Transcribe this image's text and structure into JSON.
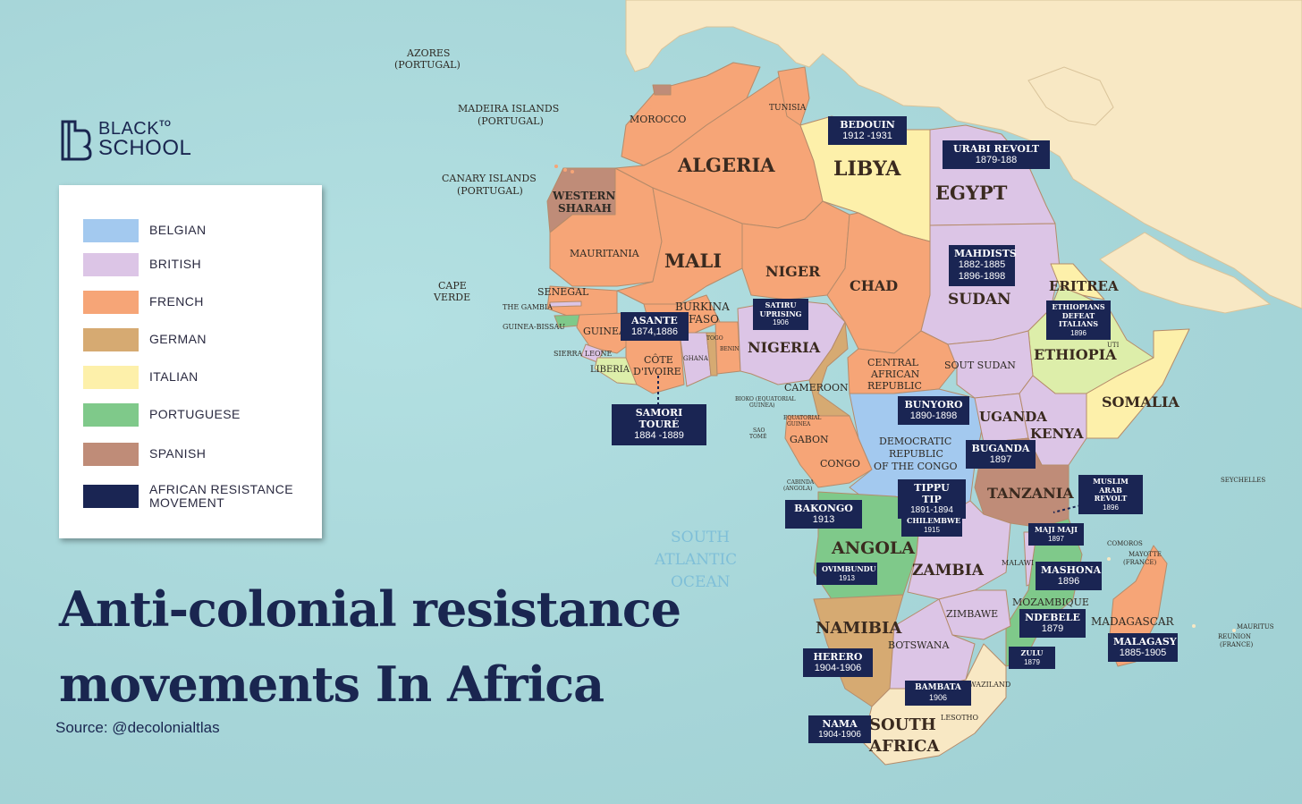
{
  "title_lines": [
    "Anti-colonial resistance",
    "movements In Africa"
  ],
  "source": "Source: @decolonialtlas",
  "logo": {
    "line1": "BLACK",
    "sup": "TO",
    "line2": "SCHOOL"
  },
  "legend": [
    {
      "label": "BELGIAN",
      "color": "#a3c9ef"
    },
    {
      "label": "BRITISH",
      "color": "#dcc5e6"
    },
    {
      "label": "FRENCH",
      "color": "#f6a577"
    },
    {
      "label": "GERMAN",
      "color": "#d6aa72"
    },
    {
      "label": "ITALIAN",
      "color": "#fdf0aa"
    },
    {
      "label": "PORTUGUESE",
      "color": "#7fc98a"
    },
    {
      "label": "SPANISH",
      "color": "#bf8c78"
    },
    {
      "label": "AFRICAN RESISTANCE MOVEMENT",
      "color": "#1a2553"
    }
  ],
  "countries": {
    "algeria": "ALGERIA",
    "libya": "LIBYA",
    "egypt": "EGYPT",
    "mali": "MALI",
    "niger": "NIGER",
    "chad": "CHAD",
    "sudan": "SUDAN",
    "eritrea": "ERITREA",
    "ethiopia": "ETHIOPIA",
    "somalia": "SOMALIA",
    "nigeria": "NIGERIA",
    "tanzania": "TANZANIA",
    "uganda": "UGANDA",
    "kenya": "KENYA",
    "angola": "ANGOLA",
    "zambia": "ZAMBIA",
    "namibia": "NAMIBIA",
    "south_africa": "SOUTH AFRICA",
    "morocco": "MOROCCO",
    "tunisia": "TUNISIA",
    "mauritania": "MAURITANIA",
    "western_sahara": "WESTERN SHARAH",
    "senegal": "SENEGAL",
    "gambia": "THE GAMBIA",
    "guinea_bissau": "GUINEA-BISSAU",
    "guinea": "GUINEA",
    "sierra_leone": "SIERRA LEONE",
    "liberia": "LIBERIA",
    "cote": "CÔTE D'IVOIRE",
    "ghana": "GHANA",
    "togo": "TOGO",
    "benin": "BENIN",
    "burkina": "BURKINA FASO",
    "cameroon": "CAMEROON",
    "car": "CENTRAL AFRICAN REPUBLIC",
    "south_sudan": "SOUT SUDAN",
    "gabon": "GABON",
    "congo": "CONGO",
    "drc": "DEMOCRATIC REPUBLIC OF THE CONGO",
    "bioko": "BIOKO (EQUATORIAL GUINEA)",
    "eq_guinea": "EQUATORIAL GUINEA",
    "sao_tome": "SAO TOMÉ",
    "cabinda": "CABINDA (ANGOLA)",
    "malawi": "MALAWI",
    "mozambique": "MOZAMBIQUE",
    "zimbabwe": "ZIMBAWE",
    "botswana": "BOTSWANA",
    "swaziland": "SWAZILAND",
    "lesotho": "LESOTHO",
    "madagascar": "MADAGASCAR",
    "comoros": "COMOROS",
    "mayotte": "MAYOTTE (FRANCE)",
    "seychelles": "SEYCHELLES",
    "mauritius": "MAURITUS",
    "reunion": "REUNION (FRANCE)",
    "azores": "AZORES (PORTUGAL)",
    "madeira": "MADEIRA ISLANDS (PORTUGAL)",
    "canary": "CANARY ISLANDS (PORTUGAL)",
    "cape_verde": "CAPE VERDE",
    "djibouti": "UTI"
  },
  "ocean": "SOUTH ATLANTIC OCEAN",
  "resistance": [
    {
      "name": "BEDOUIN",
      "dates": "1912 -1931"
    },
    {
      "name": "URABI REVOLT",
      "dates": "1879-188"
    },
    {
      "name": "MAHDISTS",
      "dates": "1882-1885 1896-1898"
    },
    {
      "name": "ETHIOPIANS DEFEAT ITALIANS",
      "dates": "1896"
    },
    {
      "name": "SATIRU UPRISING",
      "dates": "1906"
    },
    {
      "name": "ASANTE",
      "dates": "1874,1886"
    },
    {
      "name": "SAMORI TOURÉ",
      "dates": "1884 -1889"
    },
    {
      "name": "BUNYORO",
      "dates": "1890-1898"
    },
    {
      "name": "BUGANDA",
      "dates": "1897"
    },
    {
      "name": "MUSLIM ARAB REVOLT",
      "dates": "1896"
    },
    {
      "name": "TIPPU TIP",
      "dates": "1891-1894"
    },
    {
      "name": "BAKONGO",
      "dates": "1913"
    },
    {
      "name": "CHILEMBWE",
      "dates": "1915"
    },
    {
      "name": "MAJI MAJI",
      "dates": "1897"
    },
    {
      "name": "OVIMBUNDU",
      "dates": "1913"
    },
    {
      "name": "MASHONA",
      "dates": "1896"
    },
    {
      "name": "NDEBELE",
      "dates": "1879"
    },
    {
      "name": "MALAGASY",
      "dates": "1885-1905"
    },
    {
      "name": "HERERO",
      "dates": "1904-1906"
    },
    {
      "name": "ZULU",
      "dates": "1879"
    },
    {
      "name": "BAMBATA",
      "dates": "1906"
    },
    {
      "name": "NAMA",
      "dates": "1904-1906"
    }
  ]
}
